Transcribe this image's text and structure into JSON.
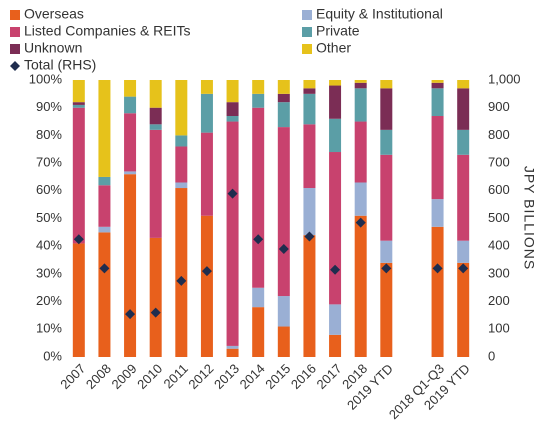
{
  "chart_data": {
    "type": "bar",
    "stacked": true,
    "categories": [
      "2007",
      "2008",
      "2009",
      "2010",
      "2011",
      "2012",
      "2013",
      "2014",
      "2015",
      "2016",
      "2017",
      "2018",
      "2019 YTD",
      null,
      "2018 Q1-Q3",
      "2019 YTD"
    ],
    "series": [
      {
        "name": "Overseas",
        "color": "#e8601c",
        "values": [
          41,
          45,
          66,
          43,
          61,
          51,
          3,
          18,
          11,
          44,
          8,
          51,
          34,
          null,
          47,
          34
        ]
      },
      {
        "name": "Equity & Institutional",
        "color": "#9aafd4",
        "values": [
          0,
          2,
          1,
          0,
          2,
          0,
          1,
          7,
          11,
          17,
          11,
          12,
          8,
          null,
          10,
          8
        ]
      },
      {
        "name": "Listed Companies & REITs",
        "color": "#c8426e",
        "values": [
          49,
          15,
          21,
          39,
          13,
          30,
          81,
          65,
          61,
          23,
          55,
          22,
          31,
          null,
          30,
          31
        ]
      },
      {
        "name": "Private",
        "color": "#5b9ea6",
        "values": [
          1,
          3,
          6,
          2,
          4,
          14,
          2,
          5,
          9,
          11,
          12,
          12,
          9,
          null,
          10,
          9
        ]
      },
      {
        "name": "Unknown",
        "color": "#7b2d55",
        "values": [
          1,
          0,
          0,
          6,
          0,
          0,
          5,
          0,
          3,
          2,
          12,
          2,
          15,
          null,
          2,
          15
        ]
      },
      {
        "name": "Other",
        "color": "#e6c21b",
        "values": [
          8,
          35,
          6,
          10,
          20,
          5,
          8,
          5,
          5,
          3,
          2,
          1,
          3,
          null,
          1,
          3
        ]
      },
      {
        "name": "Total (RHS)",
        "color": "#1f2d4e",
        "type": "scatter",
        "marker": "diamond",
        "axis": "y2",
        "values": [
          425,
          320,
          155,
          160,
          275,
          310,
          590,
          425,
          390,
          435,
          315,
          485,
          320,
          null,
          320,
          320
        ]
      }
    ],
    "ylim": [
      0,
      100
    ],
    "yticks": [
      {
        "value": 0,
        "label": "0%"
      },
      {
        "value": 10,
        "label": "10%"
      },
      {
        "value": 20,
        "label": "20%"
      },
      {
        "value": 30,
        "label": "30%"
      },
      {
        "value": 40,
        "label": "40%"
      },
      {
        "value": 50,
        "label": "50%"
      },
      {
        "value": 60,
        "label": "60%"
      },
      {
        "value": 70,
        "label": "70%"
      },
      {
        "value": 80,
        "label": "80%"
      },
      {
        "value": 90,
        "label": "90%"
      },
      {
        "value": 100,
        "label": "100%"
      }
    ],
    "y2lim": [
      0,
      1000
    ],
    "y2ticks": [
      0,
      100,
      200,
      300,
      400,
      500,
      600,
      700,
      800,
      900,
      {
        "value": 1000,
        "label": "1,000"
      }
    ],
    "y2label": "JPY BILLIONS",
    "grid": false,
    "legend": "top"
  }
}
